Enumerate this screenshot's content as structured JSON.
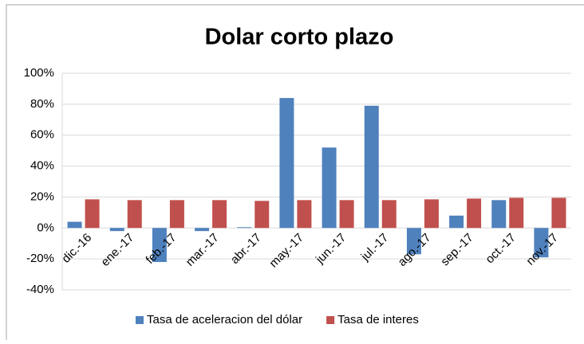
{
  "chart_data": {
    "type": "bar",
    "title": "Dolar corto plazo",
    "categories": [
      "dic.-16",
      "ene.-17",
      "feb.-17",
      "mar.-17",
      "abr.-17",
      "may.-17",
      "jun.-17",
      "jul.-17",
      "ago.-17",
      "sep.-17",
      "oct.-17",
      "nov.-17"
    ],
    "series": [
      {
        "name": "Tasa de aceleracion del dólar",
        "color": "#4f81bd",
        "values": [
          4,
          -2,
          -22,
          -2,
          0.5,
          84,
          52,
          79,
          -17,
          8,
          18,
          -19
        ]
      },
      {
        "name": "Tasa de interes",
        "color": "#c0504d",
        "values": [
          18.5,
          18,
          18,
          18,
          17.5,
          18,
          18,
          18,
          18.5,
          19,
          19.5,
          19.5
        ]
      }
    ],
    "ylim": [
      -40,
      100
    ],
    "yticks": [
      {
        "value": -40,
        "label": "-40%"
      },
      {
        "value": -20,
        "label": "-20%"
      },
      {
        "value": 0,
        "label": "0%"
      },
      {
        "value": 20,
        "label": "20%"
      },
      {
        "value": 40,
        "label": "40%"
      },
      {
        "value": 60,
        "label": "60%"
      },
      {
        "value": 80,
        "label": "80%"
      },
      {
        "value": 100,
        "label": "100%"
      }
    ],
    "grid": true,
    "legend": "bottom"
  }
}
